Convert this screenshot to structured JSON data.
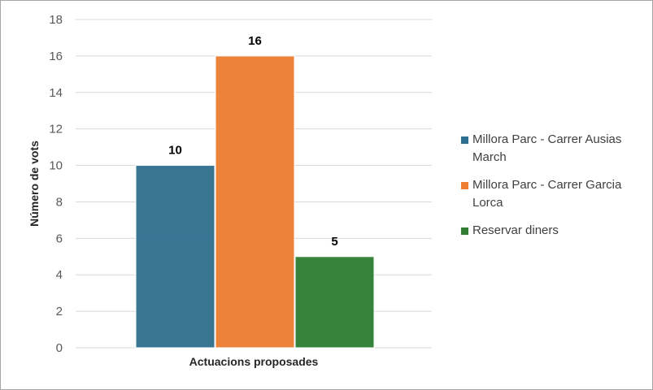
{
  "chart_data": {
    "type": "bar",
    "categories": [
      "Actuacions proposades"
    ],
    "series": [
      {
        "name": "Millora Parc - Carrer Ausias March",
        "values": [
          10
        ],
        "color": "#2e6e8e"
      },
      {
        "name": "Millora Parc - Carrer Garcia Lorca",
        "values": [
          16
        ],
        "color": "#ed7d31"
      },
      {
        "name": "Reservar diners",
        "values": [
          5
        ],
        "color": "#2e7d32"
      }
    ],
    "title": "",
    "xlabel": "Actuacions proposades",
    "ylabel": "Número de vots",
    "ylim": [
      0,
      18
    ],
    "yticks": [
      0,
      2,
      4,
      6,
      8,
      10,
      12,
      14,
      16,
      18
    ],
    "grid": true,
    "legend": "right",
    "data_labels": [
      "10",
      "16",
      "5"
    ]
  }
}
